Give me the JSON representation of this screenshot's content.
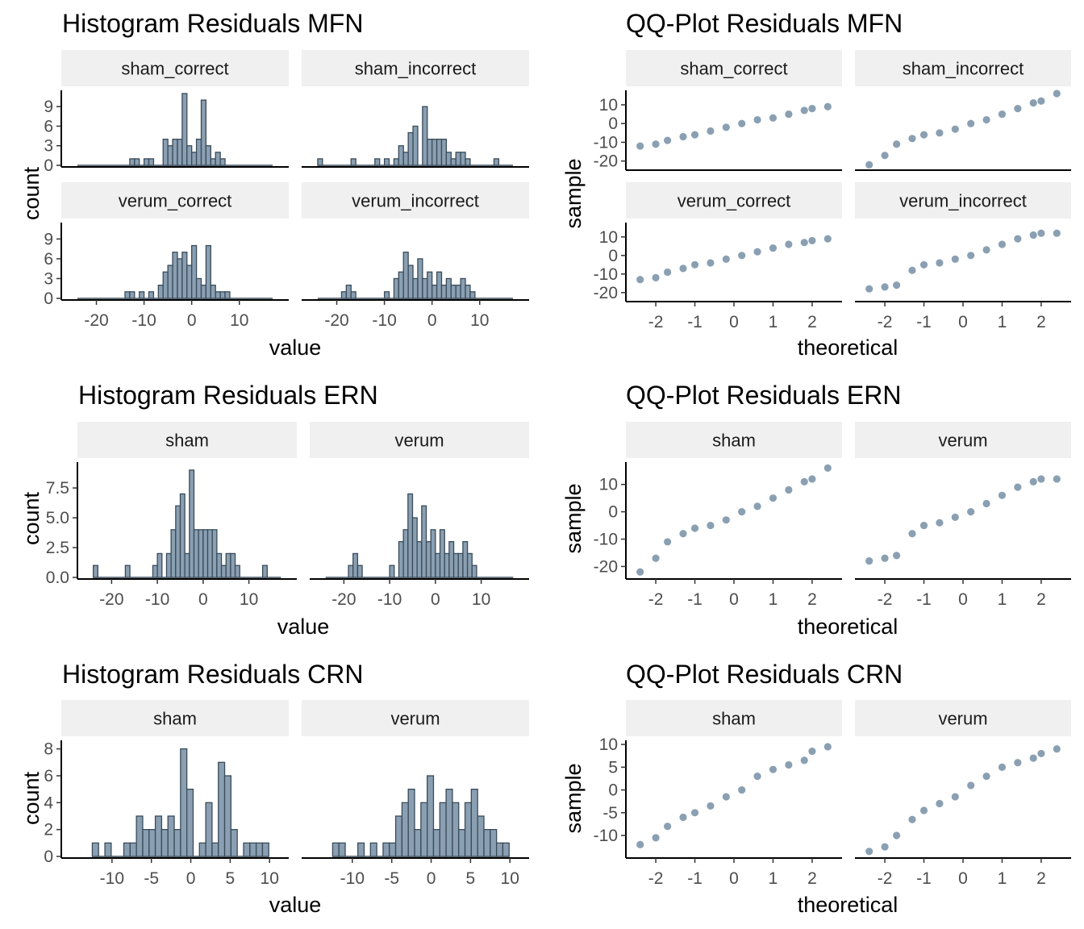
{
  "colors": {
    "bar_fill": "#8aa0b2",
    "bar_stroke": "#3a4b5a",
    "point": "#8aa0b2",
    "strip_bg": "#f0f0f0",
    "axis": "#000000",
    "tick_text": "#4d4d4d"
  },
  "chart_data": [
    {
      "type": "bar",
      "title": "Histogram Residuals MFN",
      "xlabel": "value",
      "ylabel": "count",
      "xlim": [
        -25,
        18
      ],
      "ylim": [
        0,
        11
      ],
      "grid": false,
      "x_ticks": [
        -20,
        -10,
        0,
        10
      ],
      "y_ticks": [
        0,
        3,
        6,
        9
      ],
      "bin_start": -24,
      "binwidth": 1,
      "panels": [
        {
          "name": "sham_correct",
          "counts": [
            0,
            0,
            0,
            0,
            0,
            0,
            0,
            0,
            0,
            0,
            0,
            1,
            1,
            0,
            1,
            1,
            0,
            0,
            4,
            3,
            4,
            4,
            11,
            3,
            2,
            4,
            10,
            3,
            1,
            2,
            1,
            0,
            0,
            0,
            0,
            0,
            0,
            0,
            0,
            0,
            0
          ]
        },
        {
          "name": "sham_incorrect",
          "counts": [
            1,
            0,
            0,
            0,
            0,
            0,
            0,
            1,
            0,
            0,
            0,
            0,
            1,
            0,
            1,
            0,
            1,
            3,
            2,
            5,
            6,
            0,
            9,
            4,
            4,
            4,
            4,
            2,
            1,
            2,
            2,
            1,
            0,
            0,
            0,
            0,
            0,
            1,
            0,
            0,
            0
          ]
        },
        {
          "name": "verum_correct",
          "counts": [
            0,
            0,
            0,
            0,
            0,
            0,
            0,
            0,
            0,
            0,
            1,
            1,
            0,
            1,
            0,
            1,
            0,
            2,
            4,
            5,
            7,
            6,
            7,
            5,
            8,
            3,
            2,
            8,
            2,
            1,
            1,
            1,
            0,
            0,
            0,
            0,
            0,
            0,
            0,
            0,
            0
          ]
        },
        {
          "name": "verum_incorrect",
          "counts": [
            0,
            0,
            0,
            0,
            0,
            1,
            2,
            1,
            0,
            0,
            0,
            0,
            0,
            0,
            1,
            0,
            3,
            4,
            7,
            5,
            3,
            6,
            3,
            4,
            2,
            4,
            2,
            3,
            2,
            2,
            3,
            2,
            1,
            0,
            0,
            0,
            0,
            0,
            0,
            0,
            0
          ]
        }
      ]
    },
    {
      "type": "scatter",
      "title": "QQ-Plot Residuals MFN",
      "xlabel": "theoretical",
      "ylabel": "sample",
      "xlim": [
        -2.6,
        2.6
      ],
      "ylim": [
        -24,
        16
      ],
      "grid": false,
      "x_ticks": [
        -2,
        -1,
        0,
        1,
        2
      ],
      "y_ticks": [
        -20,
        -10,
        0,
        10
      ],
      "panels": [
        {
          "name": "sham_correct",
          "x": [
            -2.4,
            -2.0,
            -1.7,
            -1.3,
            -1.0,
            -0.6,
            -0.2,
            0.2,
            0.6,
            1.0,
            1.4,
            1.8,
            2.0,
            2.4
          ],
          "y": [
            -12,
            -11,
            -9,
            -7,
            -6,
            -4,
            -2,
            0,
            2,
            3,
            5,
            7,
            8,
            9
          ]
        },
        {
          "name": "sham_incorrect",
          "x": [
            -2.4,
            -2.0,
            -1.7,
            -1.3,
            -1.0,
            -0.6,
            -0.2,
            0.2,
            0.6,
            1.0,
            1.4,
            1.8,
            2.0,
            2.4
          ],
          "y": [
            -22,
            -17,
            -11,
            -8,
            -6,
            -5,
            -3,
            0,
            2,
            5,
            8,
            11,
            12,
            16
          ]
        },
        {
          "name": "verum_correct",
          "x": [
            -2.4,
            -2.0,
            -1.7,
            -1.3,
            -1.0,
            -0.6,
            -0.2,
            0.2,
            0.6,
            1.0,
            1.4,
            1.8,
            2.0,
            2.4
          ],
          "y": [
            -13,
            -12,
            -9,
            -7,
            -5,
            -4,
            -2,
            0,
            2,
            4,
            6,
            7,
            8,
            9
          ]
        },
        {
          "name": "verum_incorrect",
          "x": [
            -2.4,
            -2.0,
            -1.7,
            -1.3,
            -1.0,
            -0.6,
            -0.2,
            0.2,
            0.6,
            1.0,
            1.4,
            1.8,
            2.0,
            2.4
          ],
          "y": [
            -18,
            -17,
            -16,
            -8,
            -5,
            -4,
            -2,
            0,
            3,
            6,
            9,
            11,
            12,
            12
          ]
        }
      ]
    },
    {
      "type": "bar",
      "title": "Histogram Residuals ERN",
      "xlabel": "value",
      "ylabel": "count",
      "xlim": [
        -25,
        18
      ],
      "ylim": [
        0,
        9.4
      ],
      "grid": false,
      "x_ticks": [
        -20,
        -10,
        0,
        10
      ],
      "y_ticks": [
        0,
        2.5,
        5,
        7.5
      ],
      "y_tick_labels": [
        "0.0",
        "2.5",
        "5.0",
        "7.5"
      ],
      "bin_start": -24,
      "binwidth": 1,
      "panels": [
        {
          "name": "sham",
          "counts": [
            1,
            0,
            0,
            0,
            0,
            0,
            0,
            1,
            0,
            0,
            0,
            0,
            0,
            1,
            2,
            0,
            2,
            4,
            6,
            7,
            2,
            9,
            4,
            4,
            4,
            4,
            4,
            2,
            1,
            2,
            2,
            1,
            0,
            0,
            0,
            0,
            0,
            1,
            0,
            0,
            0
          ]
        },
        {
          "name": "verum",
          "counts": [
            0,
            0,
            0,
            0,
            0,
            1,
            2,
            1,
            0,
            0,
            0,
            0,
            0,
            0,
            1,
            0,
            3,
            4,
            7,
            5,
            3,
            6,
            3,
            4,
            2,
            4,
            2,
            3,
            2,
            2,
            3,
            2,
            1,
            0,
            0,
            0,
            0,
            0,
            0,
            0,
            0
          ]
        }
      ]
    },
    {
      "type": "scatter",
      "title": "QQ-Plot Residuals ERN",
      "xlabel": "theoretical",
      "ylabel": "sample",
      "xlim": [
        -2.6,
        2.6
      ],
      "ylim": [
        -24,
        17
      ],
      "grid": false,
      "x_ticks": [
        -2,
        -1,
        0,
        1,
        2
      ],
      "y_ticks": [
        -20,
        -10,
        0,
        10
      ],
      "panels": [
        {
          "name": "sham",
          "x": [
            -2.4,
            -2.0,
            -1.7,
            -1.3,
            -1.0,
            -0.6,
            -0.2,
            0.2,
            0.6,
            1.0,
            1.4,
            1.8,
            2.0,
            2.4
          ],
          "y": [
            -22,
            -17,
            -11,
            -8,
            -6,
            -5,
            -3,
            0,
            2,
            5,
            8,
            11,
            12,
            16
          ]
        },
        {
          "name": "verum",
          "x": [
            -2.4,
            -2.0,
            -1.7,
            -1.3,
            -1.0,
            -0.6,
            -0.2,
            0.2,
            0.6,
            1.0,
            1.4,
            1.8,
            2.0,
            2.4
          ],
          "y": [
            -18,
            -17,
            -16,
            -8,
            -5,
            -4,
            -2,
            0,
            3,
            6,
            9,
            11,
            12,
            12
          ]
        }
      ]
    },
    {
      "type": "bar",
      "title": "Histogram Residuals CRN",
      "xlabel": "value",
      "ylabel": "count",
      "xlim": [
        -15,
        11
      ],
      "ylim": [
        0,
        8.4
      ],
      "grid": false,
      "x_ticks": [
        -10,
        -5,
        0,
        5,
        10
      ],
      "y_ticks": [
        0,
        2,
        4,
        6,
        8
      ],
      "bin_start": -12.5,
      "binwidth": 0.8,
      "panels": [
        {
          "name": "sham",
          "counts": [
            1,
            0,
            1,
            0,
            0,
            1,
            1,
            3,
            2,
            2,
            3,
            2,
            3,
            2,
            8,
            5,
            0,
            1,
            4,
            1,
            7,
            6,
            2,
            0,
            1,
            1,
            1,
            1
          ]
        },
        {
          "name": "verum",
          "counts": [
            1,
            1,
            0,
            0,
            1,
            0,
            1,
            0,
            1,
            1,
            3,
            4,
            5,
            2,
            4,
            6,
            2,
            4,
            5,
            4,
            2,
            4,
            5,
            3,
            2,
            2,
            1,
            1
          ]
        }
      ]
    },
    {
      "type": "scatter",
      "title": "QQ-Plot Residuals CRN",
      "xlabel": "theoretical",
      "ylabel": "sample",
      "xlim": [
        -2.6,
        2.6
      ],
      "ylim": [
        -14.6,
        10.2
      ],
      "grid": false,
      "x_ticks": [
        -2,
        -1,
        0,
        1,
        2
      ],
      "y_ticks": [
        -10,
        -5,
        0,
        5,
        10
      ],
      "panels": [
        {
          "name": "sham",
          "x": [
            -2.4,
            -2.0,
            -1.7,
            -1.3,
            -1.0,
            -0.6,
            -0.2,
            0.2,
            0.6,
            1.0,
            1.4,
            1.8,
            2.0,
            2.4
          ],
          "y": [
            -12,
            -10.5,
            -8,
            -6,
            -5,
            -3.5,
            -1.5,
            0,
            3,
            4.5,
            5.5,
            6.5,
            8.5,
            9.5
          ]
        },
        {
          "name": "verum",
          "x": [
            -2.4,
            -2.0,
            -1.7,
            -1.3,
            -1.0,
            -0.6,
            -0.2,
            0.2,
            0.6,
            1.0,
            1.4,
            1.8,
            2.0,
            2.4
          ],
          "y": [
            -13.5,
            -12.5,
            -10,
            -6.5,
            -4.5,
            -3,
            -1.5,
            1,
            3,
            5,
            6,
            7,
            8,
            9
          ]
        }
      ]
    }
  ]
}
